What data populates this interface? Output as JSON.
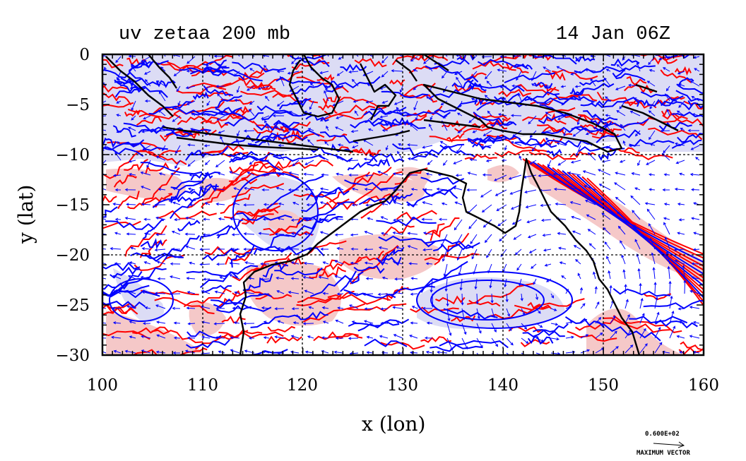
{
  "title_left": "uv zetaa 200 mb",
  "title_right": "14 Jan 06Z",
  "xlabel": "x (lon)",
  "ylabel": "y (lat)",
  "x_ticks": [
    "100",
    "110",
    "120",
    "130",
    "140",
    "150",
    "160"
  ],
  "y_ticks": [
    "0",
    "−5",
    "−10",
    "−15",
    "−20",
    "−25",
    "−30"
  ],
  "x_range": [
    100,
    160
  ],
  "y_range": [
    -30,
    0
  ],
  "gridlines": "dashed every 10 degrees",
  "vector_scale_value": "0.600E+02",
  "vector_scale_label": "MAXIMUM VECTOR",
  "colors": {
    "positive_contour": "#ff0000",
    "positive_fill": "#f5c8c8",
    "negative_contour": "#0000ff",
    "negative_fill": "#dcdcf5",
    "coastline": "#000000",
    "wind_vectors": "#0000ff"
  },
  "layers": [
    "wind vectors (uv)",
    "absolute vorticity contours (zetaa)",
    "coastlines",
    "lat/lon grid"
  ]
}
